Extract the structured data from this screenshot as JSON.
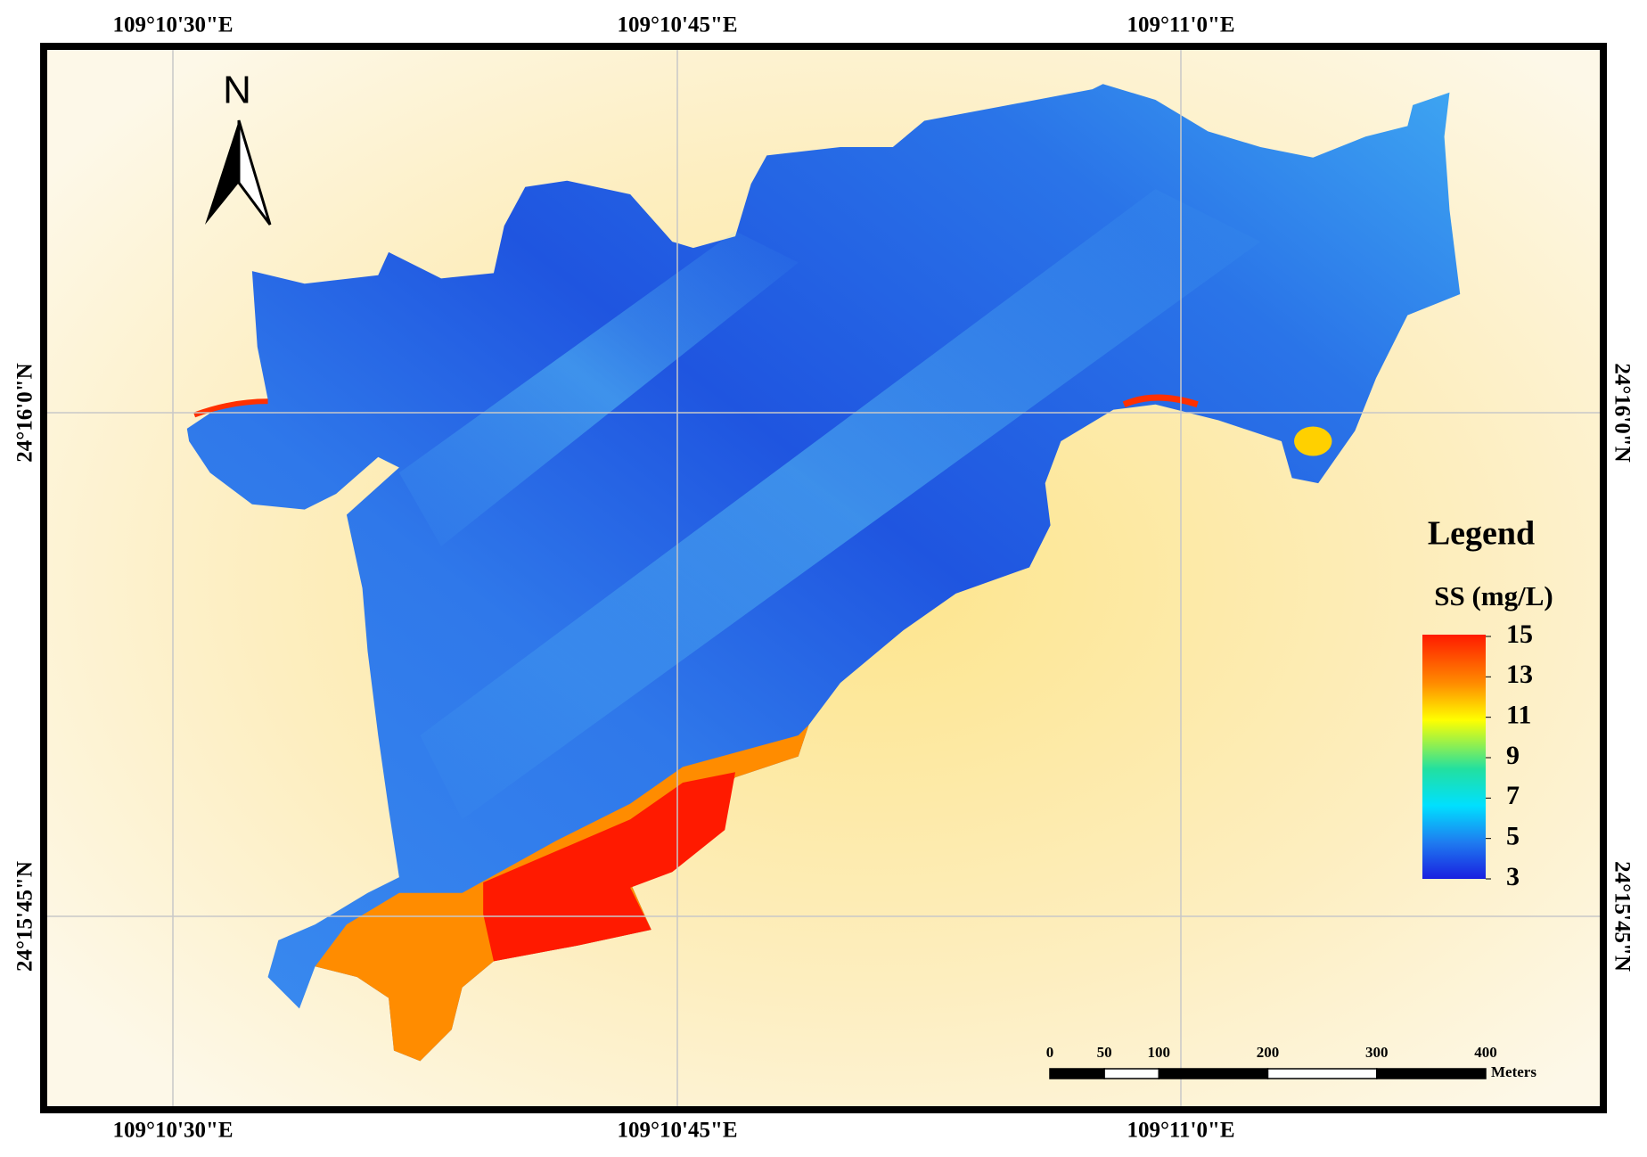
{
  "map": {
    "north_label": "N",
    "x_labels": [
      "109°10'30\"E",
      "109°10'45\"E",
      "109°11'0\"E"
    ],
    "y_labels": [
      "24°16'0\"N",
      "24°15'45\"N"
    ],
    "legend": {
      "title": "Legend",
      "variable": "SS (mg/L)",
      "range": [
        3,
        15
      ],
      "ticks": [
        15,
        13,
        11,
        9,
        7,
        5,
        3
      ]
    },
    "scale_bar": {
      "ticks": [
        0,
        50,
        100,
        200,
        300,
        400
      ],
      "unit": "Meters"
    }
  }
}
